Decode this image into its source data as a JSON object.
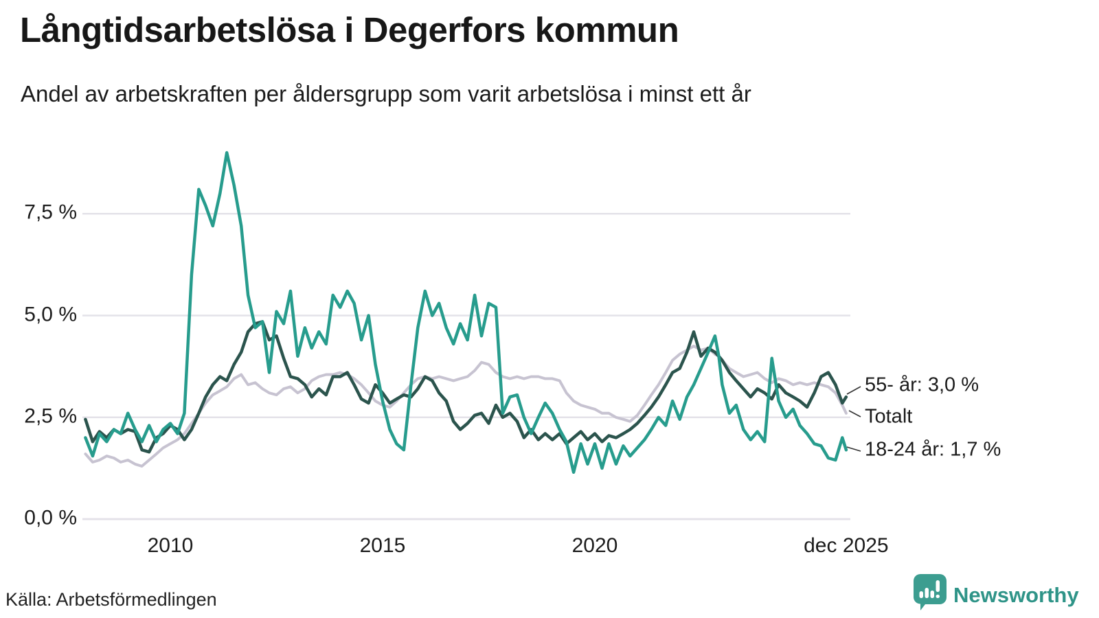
{
  "header": {
    "title": "Långtidsarbetslösa i Degerfors kommun",
    "subtitle": "Andel av arbetskraften per åldersgrupp som varit arbetslösa i minst ett år"
  },
  "chart": {
    "y_tick_labels": [
      "7,5 %",
      "5,0 %",
      "2,5 %",
      "0,0 %"
    ],
    "x_tick_labels": [
      "2010",
      "2015",
      "2020",
      "dec 2025"
    ],
    "end_labels": [
      "55- år: 3,0 %",
      "Totalt",
      "18-24 år: 1,7 %"
    ]
  },
  "footer": {
    "source": "Källa: Arbetsförmedlingen",
    "brand": "Newsworthy"
  },
  "colors": {
    "accent_teal": "#279c8d",
    "dark_green": "#2b544d",
    "total_gray": "#c7c3d1",
    "gridline": "#e4e2e9",
    "text": "#1b1b1b",
    "leader_line": "#333333",
    "logo_bubble": "#3c9d90",
    "logo_text": "#2f9488"
  },
  "chart_data": {
    "type": "line",
    "title": "Långtidsarbetslösa i Degerfors kommun",
    "subtitle": "Andel av arbetskraften per åldersgrupp som varit arbetslösa i minst ett år",
    "unit": "%",
    "ylim": [
      0,
      9.3
    ],
    "y_gridlines": [
      0,
      2.5,
      5,
      7.5
    ],
    "y_gridline_labels": [
      "0,0 %",
      "2,5 %",
      "5,0 %",
      "7,5 %"
    ],
    "x_ticks": [
      {
        "year": 2010,
        "label": "2010"
      },
      {
        "year": 2015,
        "label": "2015"
      },
      {
        "year": 2020,
        "label": "2020"
      },
      {
        "year": 2025.92,
        "label": "dec 2025"
      }
    ],
    "legend_position": "end-of-line",
    "x": [
      2008.0,
      2008.17,
      2008.33,
      2008.5,
      2008.67,
      2008.83,
      2009.0,
      2009.17,
      2009.33,
      2009.5,
      2009.67,
      2009.83,
      2010.0,
      2010.17,
      2010.33,
      2010.5,
      2010.67,
      2010.83,
      2011.0,
      2011.17,
      2011.33,
      2011.5,
      2011.67,
      2011.83,
      2012.0,
      2012.17,
      2012.33,
      2012.5,
      2012.67,
      2012.83,
      2013.0,
      2013.17,
      2013.33,
      2013.5,
      2013.67,
      2013.83,
      2014.0,
      2014.17,
      2014.33,
      2014.5,
      2014.67,
      2014.83,
      2015.0,
      2015.17,
      2015.33,
      2015.5,
      2015.67,
      2015.83,
      2016.0,
      2016.17,
      2016.33,
      2016.5,
      2016.67,
      2016.83,
      2017.0,
      2017.17,
      2017.33,
      2017.5,
      2017.67,
      2017.83,
      2018.0,
      2018.17,
      2018.33,
      2018.5,
      2018.67,
      2018.83,
      2019.0,
      2019.17,
      2019.33,
      2019.5,
      2019.67,
      2019.83,
      2020.0,
      2020.17,
      2020.33,
      2020.5,
      2020.67,
      2020.83,
      2021.0,
      2021.17,
      2021.33,
      2021.5,
      2021.67,
      2021.83,
      2022.0,
      2022.17,
      2022.33,
      2022.5,
      2022.67,
      2022.83,
      2022.92,
      2023.0,
      2023.17,
      2023.33,
      2023.5,
      2023.67,
      2023.83,
      2024.0,
      2024.17,
      2024.33,
      2024.5,
      2024.67,
      2024.83,
      2025.0,
      2025.17,
      2025.33,
      2025.5,
      2025.67,
      2025.83,
      2025.92
    ],
    "series": [
      {
        "name": "Totalt",
        "end_label": "Totalt",
        "color": "#c7c3d1",
        "width": 4,
        "values": [
          1.6,
          1.4,
          1.45,
          1.55,
          1.5,
          1.4,
          1.45,
          1.35,
          1.3,
          1.45,
          1.6,
          1.75,
          1.85,
          1.95,
          2.1,
          2.35,
          2.6,
          2.85,
          3.05,
          3.15,
          3.25,
          3.45,
          3.55,
          3.3,
          3.35,
          3.2,
          3.1,
          3.05,
          3.2,
          3.25,
          3.1,
          3.2,
          3.4,
          3.5,
          3.55,
          3.55,
          3.6,
          3.55,
          3.45,
          3.3,
          3.1,
          2.9,
          2.8,
          2.75,
          2.9,
          3.1,
          3.3,
          3.45,
          3.5,
          3.45,
          3.5,
          3.45,
          3.4,
          3.45,
          3.5,
          3.65,
          3.85,
          3.8,
          3.6,
          3.5,
          3.45,
          3.5,
          3.45,
          3.5,
          3.5,
          3.45,
          3.45,
          3.4,
          3.1,
          2.9,
          2.8,
          2.75,
          2.7,
          2.6,
          2.6,
          2.5,
          2.45,
          2.4,
          2.55,
          2.8,
          3.05,
          3.3,
          3.6,
          3.9,
          4.05,
          4.15,
          4.25,
          4.15,
          4.2,
          4.05,
          4.0,
          3.9,
          3.7,
          3.6,
          3.5,
          3.55,
          3.6,
          3.45,
          3.35,
          3.45,
          3.4,
          3.3,
          3.35,
          3.3,
          3.35,
          3.3,
          3.25,
          3.1,
          2.8,
          2.6
        ]
      },
      {
        "name": "55- år",
        "end_label": "55- år: 3,0 %",
        "color": "#2b544d",
        "width": 4.5,
        "values": [
          2.45,
          1.9,
          2.15,
          2.0,
          2.2,
          2.1,
          2.2,
          2.15,
          1.7,
          1.65,
          2.0,
          2.1,
          2.3,
          2.2,
          1.95,
          2.2,
          2.6,
          3.0,
          3.3,
          3.5,
          3.4,
          3.8,
          4.1,
          4.6,
          4.8,
          4.85,
          4.4,
          4.5,
          3.95,
          3.5,
          3.45,
          3.3,
          3.0,
          3.2,
          3.05,
          3.5,
          3.5,
          3.6,
          3.3,
          2.95,
          2.85,
          3.3,
          3.1,
          2.85,
          2.95,
          3.05,
          3.0,
          3.2,
          3.5,
          3.4,
          3.1,
          2.9,
          2.4,
          2.2,
          2.35,
          2.55,
          2.6,
          2.35,
          2.8,
          2.5,
          2.6,
          2.4,
          2.0,
          2.2,
          1.95,
          2.1,
          1.95,
          2.1,
          1.85,
          2.0,
          2.15,
          1.95,
          2.1,
          1.9,
          2.05,
          2.0,
          2.1,
          2.2,
          2.35,
          2.55,
          2.75,
          3.0,
          3.3,
          3.6,
          3.7,
          4.1,
          4.6,
          4.0,
          4.2,
          4.1,
          4.0,
          3.9,
          3.6,
          3.4,
          3.2,
          3.0,
          3.2,
          3.1,
          2.95,
          3.3,
          3.1,
          3.0,
          2.9,
          2.75,
          3.1,
          3.5,
          3.6,
          3.3,
          2.85,
          3.0
        ]
      },
      {
        "name": "18-24 år",
        "end_label": "18-24 år: 1,7 %",
        "color": "#279c8d",
        "width": 4.5,
        "values": [
          2.0,
          1.55,
          2.1,
          1.9,
          2.2,
          2.1,
          2.6,
          2.2,
          1.9,
          2.3,
          1.9,
          2.2,
          2.35,
          2.1,
          2.6,
          6.0,
          8.1,
          7.7,
          7.2,
          8.0,
          9.0,
          8.2,
          7.2,
          5.5,
          4.7,
          4.85,
          3.6,
          5.1,
          4.8,
          5.6,
          4.0,
          4.7,
          4.2,
          4.6,
          4.3,
          5.5,
          5.2,
          5.6,
          5.3,
          4.4,
          5.0,
          3.8,
          2.9,
          2.2,
          1.85,
          1.7,
          3.3,
          4.7,
          5.6,
          5.0,
          5.3,
          4.7,
          4.3,
          4.8,
          4.4,
          5.5,
          4.5,
          5.3,
          5.2,
          2.6,
          3.0,
          3.05,
          2.5,
          2.1,
          2.5,
          2.85,
          2.6,
          2.2,
          1.9,
          1.15,
          1.85,
          1.35,
          1.85,
          1.25,
          1.85,
          1.35,
          1.8,
          1.55,
          1.75,
          1.95,
          2.2,
          2.5,
          2.3,
          2.9,
          2.45,
          3.0,
          3.3,
          3.7,
          4.1,
          4.5,
          4.0,
          3.3,
          2.6,
          2.8,
          2.2,
          1.95,
          2.15,
          1.9,
          3.95,
          2.9,
          2.5,
          2.7,
          2.3,
          2.1,
          1.85,
          1.8,
          1.5,
          1.45,
          2.0,
          1.7
        ]
      }
    ]
  }
}
